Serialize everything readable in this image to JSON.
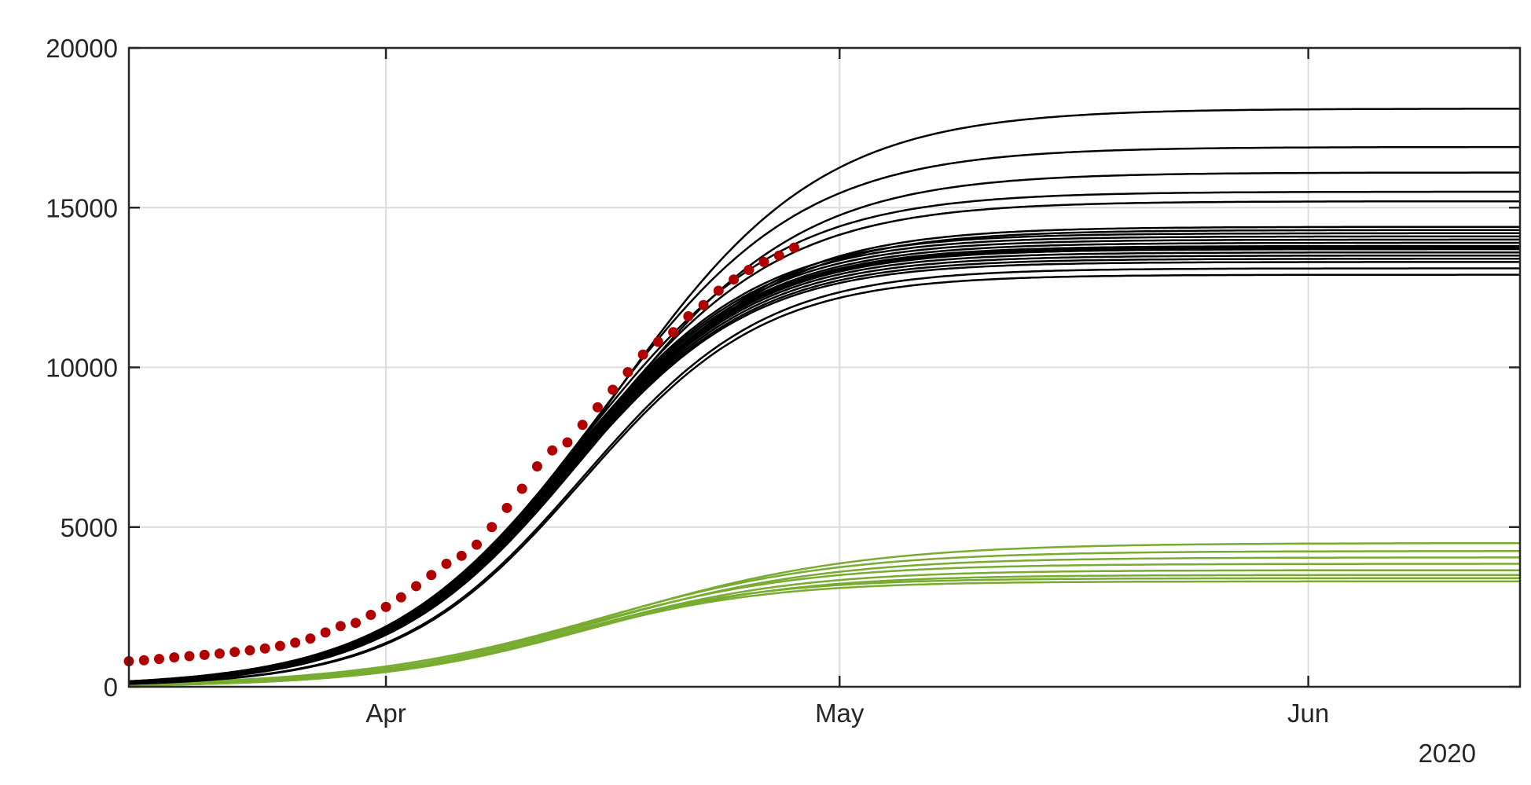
{
  "chart_data": {
    "type": "line",
    "title": "",
    "xlabel": "",
    "ylabel": "",
    "x_axis": {
      "type": "date",
      "range": [
        "2020-03-15",
        "2020-06-15"
      ],
      "ticks": [
        {
          "date": "2020-04-01",
          "label": "Apr"
        },
        {
          "date": "2020-05-01",
          "label": "May"
        },
        {
          "date": "2020-06-01",
          "label": "Jun"
        }
      ],
      "year_label": "2020"
    },
    "y_axis": {
      "range": [
        0,
        20000
      ],
      "ticks": [
        0,
        5000,
        10000,
        15000,
        20000
      ],
      "tick_labels": [
        "0",
        "5000",
        "10000",
        "15000",
        "20000"
      ]
    },
    "grid": true,
    "colors": {
      "model_cases": "#000000",
      "model_secondary": "#77ac30",
      "observed": "#b00000",
      "grid": "#dcdcdc",
      "axis": "#262626"
    },
    "series": [
      {
        "role": "model-trajectories-black",
        "plateaus": [
          18100,
          16900,
          16100,
          15500,
          15200,
          14400,
          14300,
          14200,
          14100,
          14000,
          13900,
          13800,
          13750,
          13700,
          13600,
          13500,
          13400,
          13300,
          13100,
          12900
        ],
        "midpoints": [
          "2020-04-16",
          "2020-04-15",
          "2020-04-15",
          "2020-04-14",
          "2020-04-14",
          "2020-04-14",
          "2020-04-14",
          "2020-04-13",
          "2020-04-13",
          "2020-04-13",
          "2020-04-13",
          "2020-04-13",
          "2020-04-13",
          "2020-04-13",
          "2020-04-13",
          "2020-04-13",
          "2020-04-13",
          "2020-04-13",
          "2020-04-14",
          "2020-04-14"
        ],
        "rate_per_day": [
          0.145,
          0.148,
          0.15,
          0.152,
          0.153,
          0.158,
          0.158,
          0.16,
          0.16,
          0.16,
          0.16,
          0.162,
          0.162,
          0.162,
          0.163,
          0.163,
          0.163,
          0.164,
          0.165,
          0.166
        ]
      },
      {
        "role": "model-trajectories-green",
        "plateaus": [
          4500,
          4250,
          4050,
          3850,
          3650,
          3500,
          3400,
          3300
        ],
        "midpoints": [
          "2020-04-16",
          "2020-04-15",
          "2020-04-15",
          "2020-04-14",
          "2020-04-14",
          "2020-04-14",
          "2020-04-13",
          "2020-04-13"
        ],
        "rate_per_day": [
          0.12,
          0.125,
          0.13,
          0.135,
          0.14,
          0.145,
          0.15,
          0.15
        ]
      },
      {
        "role": "observed-data",
        "points": [
          [
            "2020-03-15",
            800
          ],
          [
            "2020-03-16",
            830
          ],
          [
            "2020-03-17",
            870
          ],
          [
            "2020-03-18",
            920
          ],
          [
            "2020-03-19",
            960
          ],
          [
            "2020-03-20",
            1000
          ],
          [
            "2020-03-21",
            1040
          ],
          [
            "2020-03-22",
            1090
          ],
          [
            "2020-03-23",
            1140
          ],
          [
            "2020-03-24",
            1200
          ],
          [
            "2020-03-25",
            1280
          ],
          [
            "2020-03-26",
            1380
          ],
          [
            "2020-03-27",
            1510
          ],
          [
            "2020-03-28",
            1700
          ],
          [
            "2020-03-29",
            1900
          ],
          [
            "2020-03-30",
            2000
          ],
          [
            "2020-03-31",
            2250
          ],
          [
            "2020-04-01",
            2500
          ],
          [
            "2020-04-02",
            2800
          ],
          [
            "2020-04-03",
            3150
          ],
          [
            "2020-04-04",
            3500
          ],
          [
            "2020-04-05",
            3850
          ],
          [
            "2020-04-06",
            4100
          ],
          [
            "2020-04-07",
            4450
          ],
          [
            "2020-04-08",
            5000
          ],
          [
            "2020-04-09",
            5600
          ],
          [
            "2020-04-10",
            6200
          ],
          [
            "2020-04-11",
            6900
          ],
          [
            "2020-04-12",
            7400
          ],
          [
            "2020-04-13",
            7650
          ],
          [
            "2020-04-14",
            8200
          ],
          [
            "2020-04-15",
            8750
          ],
          [
            "2020-04-16",
            9300
          ],
          [
            "2020-04-17",
            9850
          ],
          [
            "2020-04-18",
            10400
          ],
          [
            "2020-04-19",
            10800
          ],
          [
            "2020-04-20",
            11100
          ],
          [
            "2020-04-21",
            11600
          ],
          [
            "2020-04-22",
            11950
          ],
          [
            "2020-04-23",
            12400
          ],
          [
            "2020-04-24",
            12750
          ],
          [
            "2020-04-25",
            13050
          ],
          [
            "2020-04-26",
            13300
          ],
          [
            "2020-04-27",
            13500
          ],
          [
            "2020-04-28",
            13750
          ]
        ]
      }
    ]
  }
}
